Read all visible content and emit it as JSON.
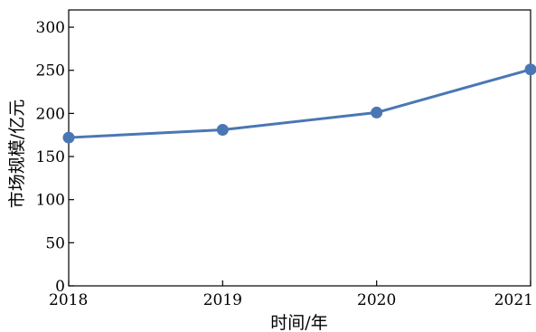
{
  "chart_data": {
    "type": "line",
    "x": [
      "2018",
      "2019",
      "2020",
      "2021"
    ],
    "series": [
      {
        "values": [
          172,
          181,
          201,
          251
        ],
        "color": "#4a77b4"
      }
    ],
    "xlabel": "时间/年",
    "ylabel": "市场规模/亿元",
    "ylim": [
      0,
      320
    ],
    "yticks": [
      0,
      50,
      100,
      150,
      200,
      250,
      300
    ],
    "xticks": [
      "2018",
      "2019",
      "2020",
      "2021"
    ],
    "grid": false,
    "legend": "none"
  }
}
